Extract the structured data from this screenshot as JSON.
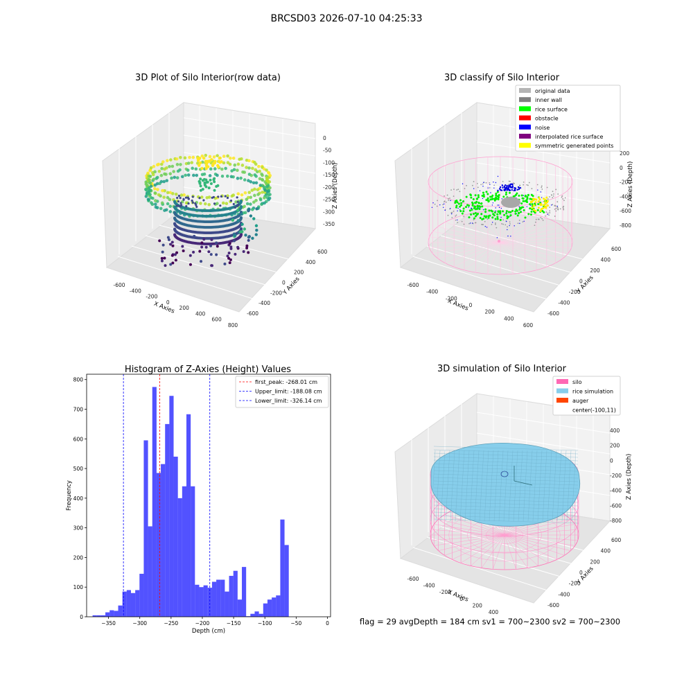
{
  "figure": {
    "suptitle": "BRCSD03 2026-07-10 04:25:33",
    "footer": "flag = 29  avgDepth = 184 cm  sv1 = 700~2300  sv2 = 700~2300"
  },
  "chart_data": [
    {
      "type": "scatter3d",
      "title": "3D Plot of Silo Interior(row data)",
      "xlabel": "X Axies",
      "ylabel": "Y Axies",
      "zlabel": "Z Axies (Depth)",
      "xticks": [
        "-600",
        "-400",
        "-200",
        "0",
        "200",
        "400",
        "600",
        "800"
      ],
      "yticks": [
        "-600",
        "-400",
        "-200",
        "0",
        "200",
        "400",
        "600"
      ],
      "zticks": [
        "0",
        "-50",
        "-100",
        "-150",
        "-200",
        "-250",
        "-300",
        "-350"
      ],
      "colormap": "viridis"
    },
    {
      "type": "scatter3d",
      "title": "3D classify of Silo Interior",
      "xlabel": "X Axies",
      "ylabel": "Y Axies",
      "zlabel": "Z Axies (Depth)",
      "xticks": [
        "-600",
        "-400",
        "-200",
        "0",
        "200",
        "400",
        "600"
      ],
      "yticks": [
        "-600",
        "-400",
        "-200",
        "0",
        "200",
        "400",
        "600"
      ],
      "zticks": [
        "200",
        "0",
        "-200",
        "-400",
        "-600",
        "-800"
      ],
      "legend_position": "top-right",
      "legend": [
        {
          "label": "original data",
          "color": "#b4b4b4"
        },
        {
          "label": "inner wall",
          "color": "#808080"
        },
        {
          "label": "rice surface",
          "color": "#00ff00"
        },
        {
          "label": "obstacle",
          "color": "#ff0000"
        },
        {
          "label": "noise",
          "color": "#0000ff"
        },
        {
          "label": "interpolated rice surface",
          "color": "#800080"
        },
        {
          "label": "symmetric generated points",
          "color": "#ffff00"
        }
      ]
    },
    {
      "type": "bar",
      "title": "Histogram of Z-Axies (Height) Values",
      "xlabel": "Depth (cm)",
      "ylabel": "Frequency",
      "xlim": [
        -385,
        5
      ],
      "ylim": [
        0,
        818
      ],
      "xticks": [
        -350,
        -300,
        -250,
        -200,
        -150,
        -100,
        -50,
        0
      ],
      "yticks": [
        0,
        100,
        200,
        300,
        400,
        500,
        600,
        700,
        800
      ],
      "bar_color": "#0000ff",
      "bin_start": -375.5,
      "bin_width": 6.82,
      "values": [
        5,
        5,
        5,
        15,
        22,
        20,
        38,
        85,
        90,
        80,
        90,
        145,
        595,
        305,
        775,
        485,
        515,
        650,
        745,
        540,
        400,
        440,
        683,
        440,
        108,
        100,
        106,
        98,
        118,
        125,
        125,
        85,
        138,
        155,
        58,
        168,
        2,
        10,
        18,
        10,
        45,
        58,
        65,
        72,
        328,
        242
      ],
      "vlines": [
        {
          "label": "first_peak: -268.01 cm",
          "x": -268.01,
          "color": "#ff0000"
        },
        {
          "label": "Upper_limit: -188.08 cm",
          "x": -188.08,
          "color": "#0000ff"
        },
        {
          "label": "Lower_limit: -326.14 cm",
          "x": -326.14,
          "color": "#0000ff"
        }
      ],
      "legend_position": "top-right"
    },
    {
      "type": "surface3d",
      "title": "3D simulation of Silo Interior",
      "xlabel": "X Axies",
      "ylabel": "Y Axies",
      "zlabel": "Z Axies (Depth)",
      "xticks": [
        "-600",
        "-400",
        "-200",
        "0",
        "200",
        "400"
      ],
      "yticks": [
        "-600",
        "-400",
        "-200",
        "0",
        "200",
        "400",
        "600"
      ],
      "zticks": [
        "400",
        "200",
        "0",
        "-200",
        "-400",
        "-600",
        "-800"
      ],
      "legend_position": "top-right",
      "legend": [
        {
          "label": "silo",
          "color": "#ff69b4"
        },
        {
          "label": "rice simulation",
          "color": "#87ceeb"
        },
        {
          "label": "auger",
          "color": "#ff4500"
        },
        {
          "label": "center(-100,11)",
          "color": "none"
        }
      ]
    }
  ]
}
